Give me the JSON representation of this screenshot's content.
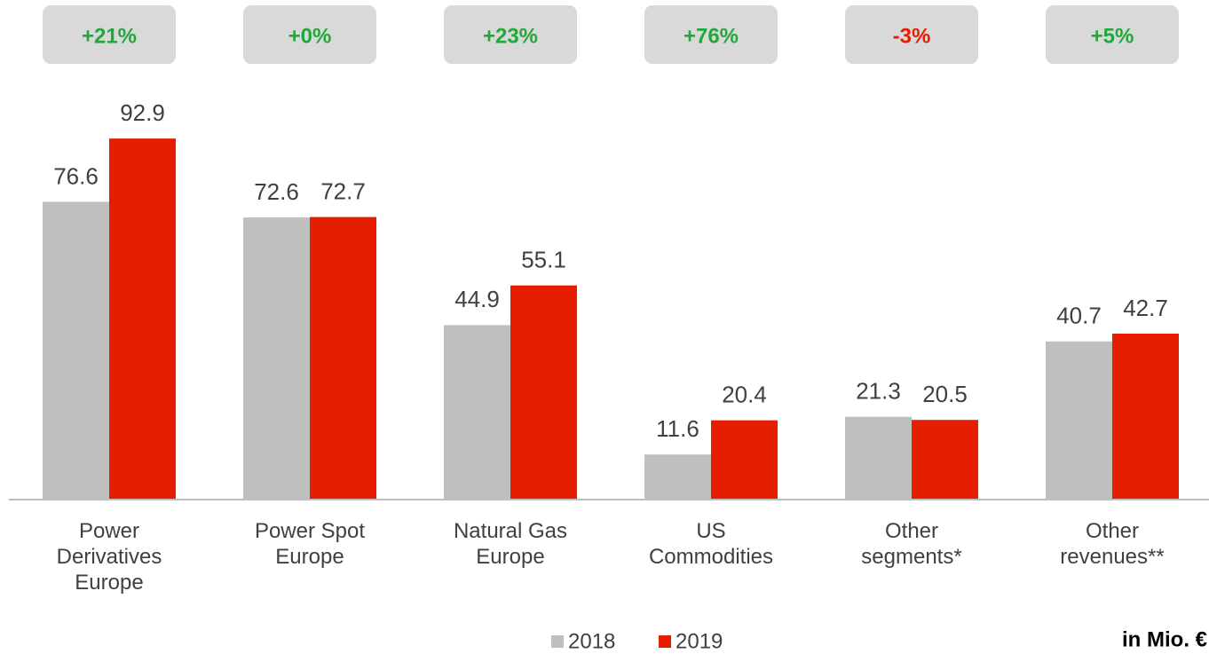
{
  "chart_data": {
    "type": "bar",
    "categories": [
      "Power Derivatives Europe",
      "Power Spot Europe",
      "Natural Gas Europe",
      "US Commodities",
      "Other segments*",
      "Other revenues**"
    ],
    "series": [
      {
        "name": "2018",
        "color": "#bfbfbf",
        "values": [
          76.6,
          72.6,
          44.9,
          11.6,
          21.3,
          40.7
        ]
      },
      {
        "name": "2019",
        "color": "#e61e00",
        "values": [
          92.9,
          72.7,
          55.1,
          20.4,
          20.5,
          42.7
        ]
      }
    ],
    "annotations": [
      {
        "text": "+21%",
        "color": "#22a83a"
      },
      {
        "text": "+0%",
        "color": "#22a83a"
      },
      {
        "text": "+23%",
        "color": "#22a83a"
      },
      {
        "text": "+76%",
        "color": "#22a83a"
      },
      {
        "text": "-3%",
        "color": "#e61e00"
      },
      {
        "text": "+5%",
        "color": "#22a83a"
      }
    ],
    "unit_note": "in Mio. €",
    "ylim": [
      0,
      100
    ],
    "legend": "bottom"
  }
}
